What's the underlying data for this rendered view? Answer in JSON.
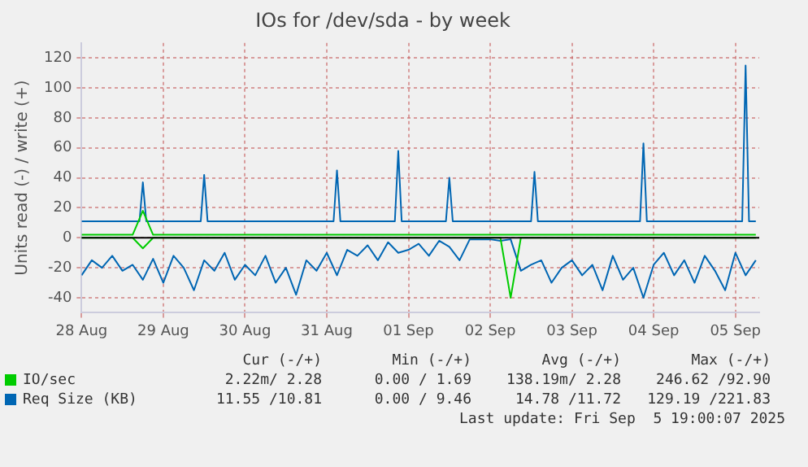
{
  "chart_data": {
    "type": "line",
    "title": "IOs for /dev/sda - by week",
    "ylabel": "Units read (-) / write (+)",
    "x": [
      "2025-08-28T00:00",
      "2025-08-28T03:00",
      "2025-08-28T06:00",
      "2025-08-28T09:00",
      "2025-08-28T12:00",
      "2025-08-28T15:00",
      "2025-08-28T18:00",
      "2025-08-28T21:00",
      "2025-08-29T00:00",
      "2025-08-29T03:00",
      "2025-08-29T06:00",
      "2025-08-29T09:00",
      "2025-08-29T12:00",
      "2025-08-29T15:00",
      "2025-08-29T18:00",
      "2025-08-29T21:00",
      "2025-08-30T00:00",
      "2025-08-30T03:00",
      "2025-08-30T06:00",
      "2025-08-30T09:00",
      "2025-08-30T12:00",
      "2025-08-30T15:00",
      "2025-08-30T18:00",
      "2025-08-30T21:00",
      "2025-08-31T00:00",
      "2025-08-31T03:00",
      "2025-08-31T06:00",
      "2025-08-31T09:00",
      "2025-08-31T12:00",
      "2025-08-31T15:00",
      "2025-08-31T18:00",
      "2025-08-31T21:00",
      "2025-09-01T00:00",
      "2025-09-01T03:00",
      "2025-09-01T06:00",
      "2025-09-01T09:00",
      "2025-09-01T12:00",
      "2025-09-01T15:00",
      "2025-09-01T18:00",
      "2025-09-01T21:00",
      "2025-09-02T00:00",
      "2025-09-02T03:00",
      "2025-09-02T06:00",
      "2025-09-02T09:00",
      "2025-09-02T12:00",
      "2025-09-02T15:00",
      "2025-09-02T18:00",
      "2025-09-02T21:00",
      "2025-09-03T00:00",
      "2025-09-03T03:00",
      "2025-09-03T06:00",
      "2025-09-03T09:00",
      "2025-09-03T12:00",
      "2025-09-03T15:00",
      "2025-09-03T18:00",
      "2025-09-03T21:00",
      "2025-09-04T00:00",
      "2025-09-04T03:00",
      "2025-09-04T06:00",
      "2025-09-04T09:00",
      "2025-09-04T12:00",
      "2025-09-04T15:00",
      "2025-09-04T18:00",
      "2025-09-04T21:00",
      "2025-09-05T00:00",
      "2025-09-05T03:00",
      "2025-09-05T06:00"
    ],
    "series": [
      {
        "name": "IO/sec",
        "color": "#00cc00",
        "values": [
          2,
          2,
          2,
          2,
          2,
          2,
          18,
          2,
          2,
          2,
          2,
          2,
          2,
          2,
          2,
          2,
          2,
          2,
          2,
          2,
          2,
          2,
          2,
          2,
          2,
          2,
          2,
          2,
          2,
          2,
          2,
          2,
          2,
          2,
          2,
          2,
          2,
          2,
          2,
          2,
          2,
          2,
          2,
          2,
          2,
          2,
          2,
          2,
          2,
          2,
          2,
          2,
          2,
          2,
          2,
          2,
          2,
          2,
          2,
          2,
          2,
          2,
          2,
          2,
          2,
          2,
          2
        ]
      },
      {
        "color": "#00cc00",
        "values": [
          0,
          0,
          0,
          0,
          0,
          0,
          -7,
          0,
          0,
          0,
          0,
          0,
          0,
          0,
          0,
          0,
          0,
          0,
          0,
          0,
          0,
          0,
          0,
          0,
          0,
          0,
          0,
          0,
          0,
          0,
          0,
          0,
          0,
          0,
          0,
          0,
          0,
          0,
          0,
          0,
          0,
          0,
          -40,
          0,
          0,
          0,
          0,
          0,
          0,
          0,
          0,
          0,
          0,
          0,
          0,
          0,
          0,
          0,
          0,
          0,
          0,
          0,
          0,
          0,
          0,
          0,
          0
        ]
      },
      {
        "name": "Req Size (KB)",
        "color": "#0066b3",
        "x": [
          "2025-08-28T00:00",
          "2025-08-28T17:00",
          "2025-08-28T18:00",
          "2025-08-28T19:00",
          "2025-08-29T11:00",
          "2025-08-29T12:00",
          "2025-08-29T13:00",
          "2025-08-31T02:00",
          "2025-08-31T03:00",
          "2025-08-31T04:00",
          "2025-08-31T20:00",
          "2025-08-31T21:00",
          "2025-08-31T22:00",
          "2025-09-01T11:00",
          "2025-09-01T12:00",
          "2025-09-01T13:00",
          "2025-09-02T12:00",
          "2025-09-02T13:00",
          "2025-09-02T14:00",
          "2025-09-03T20:00",
          "2025-09-03T21:00",
          "2025-09-03T22:00",
          "2025-09-05T02:00",
          "2025-09-05T03:00",
          "2025-09-05T04:00",
          "2025-09-05T06:00"
        ],
        "values": [
          11,
          11,
          37,
          11,
          11,
          42,
          11,
          11,
          45,
          11,
          11,
          58,
          11,
          11,
          40,
          11,
          11,
          44,
          11,
          11,
          63,
          11,
          11,
          115,
          11,
          11
        ]
      },
      {
        "color": "#0066b3",
        "values": [
          -25,
          -15,
          -20,
          -12,
          -22,
          -18,
          -28,
          -14,
          -30,
          -12,
          -20,
          -35,
          -15,
          -22,
          -10,
          -28,
          -18,
          -25,
          -12,
          -30,
          -20,
          -38,
          -15,
          -22,
          -10,
          -25,
          -8,
          -12,
          -5,
          -15,
          -3,
          -10,
          -8,
          -4,
          -12,
          -2,
          -6,
          -15,
          -1,
          -1,
          -1,
          -2,
          -1,
          -22,
          -18,
          -15,
          -30,
          -20,
          -15,
          -25,
          -18,
          -35,
          -12,
          -28,
          -20,
          -40,
          -18,
          -10,
          -25,
          -15,
          -30,
          -12,
          -22,
          -35,
          -10,
          -25,
          -15
        ]
      }
    ],
    "xlim": [
      "2025-08-28",
      "2025-09-05T07:00"
    ],
    "xticks": [
      {
        "value": "2025-08-28",
        "label": "28 Aug"
      },
      {
        "value": "2025-08-29",
        "label": "29 Aug"
      },
      {
        "value": "2025-08-30",
        "label": "30 Aug"
      },
      {
        "value": "2025-08-31",
        "label": "31 Aug"
      },
      {
        "value": "2025-09-01",
        "label": "01 Sep"
      },
      {
        "value": "2025-09-02",
        "label": "02 Sep"
      },
      {
        "value": "2025-09-03",
        "label": "03 Sep"
      },
      {
        "value": "2025-09-04",
        "label": "04 Sep"
      },
      {
        "value": "2025-09-05",
        "label": "05 Sep"
      }
    ],
    "ylim": [
      -50,
      130
    ],
    "yticks": [
      -40,
      -20,
      0,
      20,
      40,
      60,
      80,
      100,
      120
    ],
    "ref_lines": [
      {
        "axis": "y",
        "value": 0,
        "color": "#000000"
      }
    ],
    "grid": true,
    "legend": "bottom",
    "marker": "none",
    "line_style": "solid",
    "annotations": [
      "Cur (-/+)",
      "Min (-/+)",
      "Avg (-/+)",
      "Max (-/+)",
      "2.22m/ 2.28",
      "0.00 / 1.69",
      "138.19m/ 2.28",
      "246.62 /92.90",
      "11.55 /10.81",
      "0.00 / 9.46",
      "14.78 /11.72",
      "129.19 /221.83",
      "Last update: Fri Sep  5 19:00:07 2025"
    ]
  }
}
